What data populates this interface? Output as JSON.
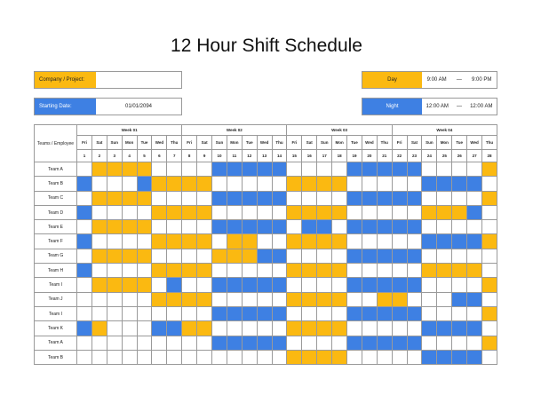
{
  "title": "12 Hour Shift Schedule",
  "company": {
    "label": "Company / Project:",
    "value": ""
  },
  "start": {
    "label": "Starting Date:",
    "value": "01/01/2094"
  },
  "day_shift": {
    "label": "Day",
    "from": "9:00 AM",
    "sep": "—",
    "to": "9:00 PM"
  },
  "night_shift": {
    "label": "Night",
    "from": "12:00 AM",
    "sep": "—",
    "to": "12:00 AM"
  },
  "colors": {
    "day": "#FBB911",
    "night": "#3E80E3"
  },
  "grid": {
    "corner": "Teams / Employee",
    "weeks": [
      "Week 01",
      "Week 02",
      "Week 03",
      "Week 04"
    ],
    "day_names": [
      "Fri",
      "Sat",
      "Sun",
      "Mon",
      "Tue",
      "Wed",
      "Thu",
      "Fri",
      "Sat",
      "Sun",
      "Mon",
      "Tue",
      "Wed",
      "Thu",
      "Fri",
      "Sat",
      "Sun",
      "Mon",
      "Tue",
      "Wed",
      "Thu",
      "Fri",
      "Sat",
      "Sun",
      "Mon",
      "Tue",
      "Wed",
      "Thu"
    ],
    "day_numbers": [
      "1",
      "2",
      "3",
      "4",
      "5",
      "6",
      "7",
      "8",
      "9",
      "10",
      "11",
      "12",
      "13",
      "14",
      "15",
      "16",
      "17",
      "18",
      "19",
      "20",
      "21",
      "22",
      "23",
      "24",
      "25",
      "26",
      "27",
      "28"
    ],
    "legend": {
      "Y": "Day",
      "B": "Night",
      "W": "Off"
    },
    "rows": [
      {
        "team": "Team A",
        "shifts": "WYYYYWWWWBBBBBWWWWBBBBBWWWWY"
      },
      {
        "team": "Team B",
        "shifts": "BWWWBYYYYWWWWWYYYYWWWWWBBBBW"
      },
      {
        "team": "Team C",
        "shifts": "WYYYYWWWWBBBBBWWWWBBBBBWWWWY"
      },
      {
        "team": "Team D",
        "shifts": "BWWWWYYYYWWWWWYYYYWWWWWYYYBW"
      },
      {
        "team": "Team E",
        "shifts": "WYYYYWWWWBBBBBWBBWBBBBBWWWWW"
      },
      {
        "team": "Team F",
        "shifts": "BWWWWYYYYWYYWWYYYYWWWWWBBBBY"
      },
      {
        "team": "Team G",
        "shifts": "WYYYYWWWWYYYBBWWWWBBBBBWWWWW"
      },
      {
        "team": "Team H",
        "shifts": "BWWWWYYYYWWWWWYYYYWWWWWYYYYW"
      },
      {
        "team": "Team I",
        "shifts": "WYYYYWBWWBBBBBWWWWBBBBBWWWWY"
      },
      {
        "team": "Team J",
        "shifts": "WWWWWYYYYWWWWWYYYYWWYYWWWBBW"
      },
      {
        "team": "Team I",
        "shifts": "WWWWWWWWWBBBBBWWWWBBBBBWWWWY"
      },
      {
        "team": "Team K",
        "shifts": "BYWWWBBYYWWWWWYYYYWWWWWBBBBW"
      },
      {
        "team": "Team A",
        "shifts": "WWWWWWWWWBBBBBWWWWBBBBBWWWWY"
      },
      {
        "team": "Team B",
        "shifts": "WWWWWWWWWWWWWWYYYYWWWWWBBBBW"
      }
    ]
  }
}
